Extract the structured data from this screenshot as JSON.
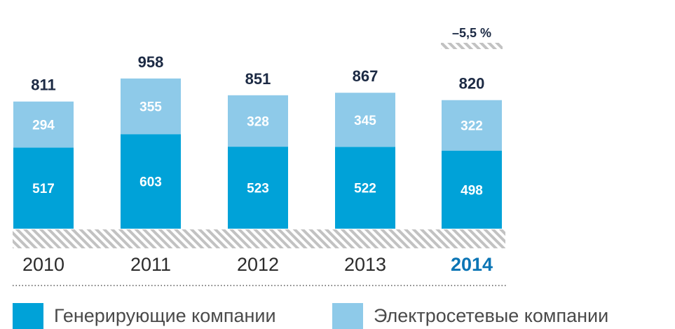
{
  "chart_data": {
    "type": "bar",
    "stacked": true,
    "categories": [
      "2010",
      "2011",
      "2012",
      "2013",
      "2014"
    ],
    "highlight_category": "2014",
    "series": [
      {
        "name": "Генерирующие компании",
        "values": [
          517,
          603,
          523,
          522,
          498
        ],
        "color": "#00a2d8"
      },
      {
        "name": "Электросетевые компании",
        "values": [
          294,
          355,
          328,
          345,
          322
        ],
        "color": "#8ecae9"
      }
    ],
    "totals": [
      811,
      958,
      851,
      867,
      820
    ],
    "annotation": {
      "category": "2014",
      "text": "–5,5 %"
    },
    "grid": false,
    "legend": "bottom"
  }
}
